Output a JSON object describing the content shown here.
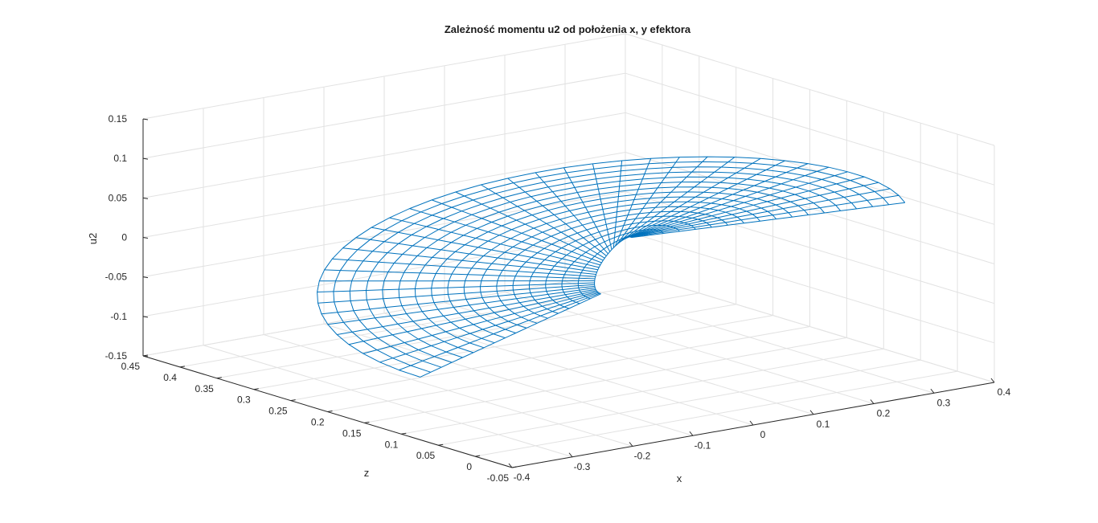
{
  "chart_data": {
    "type": "surface-mesh-3d",
    "title": "Zależność momentu u2 od położenia x, y efektora",
    "xlabel": "x",
    "zlabel_depth": "z",
    "ylabel": "u2",
    "x_ticks": [
      "-0.4",
      "-0.3",
      "-0.2",
      "-0.1",
      "0",
      "0.1",
      "0.2",
      "0.3",
      "0.4"
    ],
    "depth_ticks": [
      "-0.05",
      "0",
      "0.05",
      "0.1",
      "0.15",
      "0.2",
      "0.25",
      "0.3",
      "0.35",
      "0.4",
      "0.45"
    ],
    "u2_ticks": [
      "-0.15",
      "-0.1",
      "-0.05",
      "0",
      "0.05",
      "0.1",
      "0.15"
    ],
    "x_range": [
      -0.4,
      0.4
    ],
    "depth_range": [
      -0.05,
      0.45
    ],
    "u2_range": [
      -0.15,
      0.15
    ],
    "grid": true,
    "series_color": "#0072bd",
    "surface": {
      "description_values": {
        "num_radial_lines": 40,
        "num_rings": 18,
        "angle_range_deg": [
          0,
          220
        ],
        "radius_range": [
          0.02,
          0.32
        ],
        "u2_amplitude": 0.1
      }
    }
  }
}
